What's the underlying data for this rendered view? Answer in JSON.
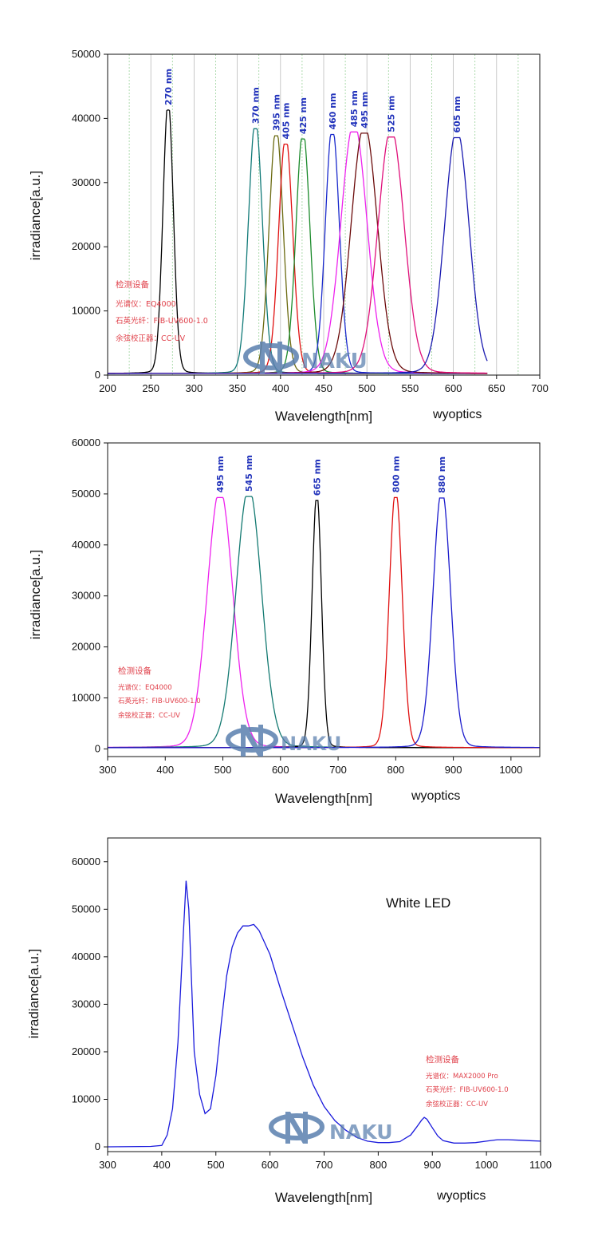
{
  "charts": [
    {
      "chart_data": {
        "type": "line",
        "xlabel": "Wavelength[nm]",
        "ylabel": "irradiance[a.u.]",
        "xlim": [
          200,
          700
        ],
        "ylim": [
          0,
          50000
        ],
        "xticks": [
          200,
          250,
          300,
          350,
          400,
          450,
          500,
          550,
          600,
          650,
          700
        ],
        "yticks": [
          0,
          10000,
          20000,
          30000,
          40000,
          50000
        ],
        "grid": "vertical dashed",
        "series": [
          {
            "label": "270 nm",
            "peak": 270,
            "value": 41300,
            "color": "#000000"
          },
          {
            "label": "370 nm",
            "peak": 371,
            "value": 38400,
            "color": "#117a78"
          },
          {
            "label": "395 nm",
            "peak": 395,
            "value": 37300,
            "color": "#6b6a10"
          },
          {
            "label": "405 nm",
            "peak": 406,
            "value": 36000,
            "color": "#e01010"
          },
          {
            "label": "425 nm",
            "peak": 426,
            "value": 36800,
            "color": "#1a8a2a"
          },
          {
            "label": "460 nm",
            "peak": 460,
            "value": 37500,
            "color": "#1a2acc"
          },
          {
            "label": "485 nm",
            "peak": 485,
            "value": 37900,
            "color": "#ee22ee"
          },
          {
            "label": "495 nm",
            "peak": 497,
            "value": 37700,
            "color": "#6b0a0a"
          },
          {
            "label": "525 nm",
            "peak": 528,
            "value": 37100,
            "color": "#e0107a"
          },
          {
            "label": "605 nm",
            "peak": 604,
            "value": 37000,
            "color": "#1a1ab0"
          }
        ]
      },
      "notes": [
        "检测设备",
        "光谱仪：EQ4000",
        "石英光纤：FIB-UV600-1.0",
        "余弦校正器：CC-UV"
      ],
      "credit": "wyoptics",
      "logo_text": "NAKU"
    },
    {
      "chart_data": {
        "type": "line",
        "xlabel": "Wavelength[nm]",
        "ylabel": "irradiance[a.u.]",
        "xlim": [
          300,
          1050
        ],
        "ylim": [
          -1500,
          60000
        ],
        "xticks": [
          300,
          400,
          500,
          600,
          700,
          800,
          900,
          1000
        ],
        "yticks": [
          0,
          10000,
          20000,
          30000,
          40000,
          50000,
          60000
        ],
        "grid": "none",
        "series": [
          {
            "label": "495 nm",
            "peak": 495,
            "value": 49300,
            "color": "#ee22ee"
          },
          {
            "label": "545 nm",
            "peak": 545,
            "value": 49500,
            "color": "#147a72"
          },
          {
            "label": "665 nm",
            "peak": 663,
            "value": 48700,
            "color": "#000000"
          },
          {
            "label": "800 nm",
            "peak": 800,
            "value": 49300,
            "color": "#e01010"
          },
          {
            "label": "880 nm",
            "peak": 880,
            "value": 49200,
            "color": "#1a1acc"
          }
        ]
      },
      "notes": [
        "检测设备",
        "光谱仪：EQ4000",
        "石英光纤：FIB-UV600-1.0",
        "余弦校正器：CC-UV"
      ],
      "credit": "wyoptics",
      "logo_text": "NAKU"
    },
    {
      "chart_data": {
        "type": "line",
        "title": "White LED",
        "xlabel": "Wavelength[nm]",
        "ylabel": "irradiance[a.u.]",
        "xlim": [
          300,
          1100
        ],
        "ylim": [
          -1000,
          65000
        ],
        "xticks": [
          300,
          400,
          500,
          600,
          700,
          800,
          900,
          1000,
          1100
        ],
        "yticks": [
          0,
          10000,
          20000,
          30000,
          40000,
          50000,
          60000
        ],
        "grid": "none",
        "series": [
          {
            "color": "#1a1adc",
            "x": [
              300,
              380,
              400,
              410,
              420,
              430,
              440,
              445,
              450,
              455,
              460,
              470,
              480,
              490,
              500,
              510,
              520,
              530,
              540,
              550,
              560,
              570,
              580,
              590,
              600,
              620,
              640,
              660,
              680,
              700,
              720,
              740,
              760,
              780,
              800,
              820,
              840,
              860,
              870,
              880,
              885,
              890,
              900,
              910,
              920,
              940,
              960,
              980,
              1000,
              1020,
              1040,
              1060,
              1080,
              1100
            ],
            "y": [
              0,
              100,
              300,
              2500,
              8000,
              22000,
              45000,
              56000,
              50000,
              35000,
              20000,
              11000,
              7000,
              8000,
              15000,
              26000,
              36000,
              42000,
              45000,
              46500,
              46500,
              46800,
              45500,
              43000,
              40500,
              33000,
              26000,
              19000,
              13000,
              8500,
              5500,
              3500,
              2000,
              1200,
              900,
              900,
              1100,
              2500,
              4000,
              5600,
              6200,
              5800,
              4000,
              2300,
              1300,
              800,
              800,
              900,
              1200,
              1500,
              1500,
              1400,
              1300,
              1200
            ]
          }
        ]
      },
      "notes": [
        "检测设备",
        "光谱仪：MAX2000 Pro",
        "石英光纤：FIB-UV600-1.0",
        "余弦校正器：CC-UV"
      ],
      "credit": "wyoptics",
      "logo_text": "NAKU"
    }
  ]
}
